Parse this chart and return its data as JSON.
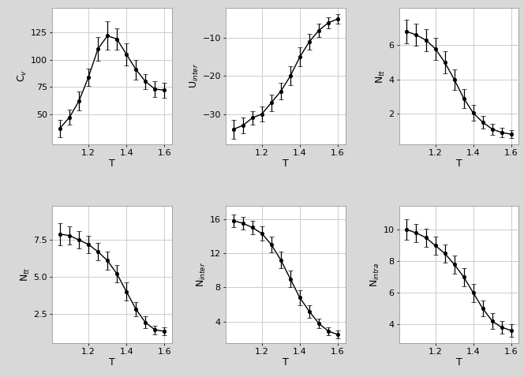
{
  "T": [
    1.05,
    1.1,
    1.15,
    1.2,
    1.25,
    1.3,
    1.35,
    1.4,
    1.45,
    1.5,
    1.55,
    1.6
  ],
  "Cv_y": [
    37,
    47,
    62,
    84,
    110,
    122,
    119,
    105,
    91,
    80,
    73,
    72
  ],
  "Cv_yerr": [
    8,
    7,
    9,
    8,
    11,
    13,
    10,
    10,
    9,
    7,
    7,
    7
  ],
  "Cv_ylabel": "C$_v$",
  "Cv_ylim": [
    22,
    148
  ],
  "Cv_yticks": [
    50,
    75,
    100,
    125
  ],
  "Uinter_y": [
    -34,
    -33,
    -31,
    -30,
    -27,
    -24,
    -20,
    -15,
    -11,
    -8,
    -6,
    -5
  ],
  "Uinter_yerr": [
    2.5,
    2.0,
    1.8,
    2.0,
    2.2,
    2.2,
    2.5,
    2.5,
    2.0,
    1.8,
    1.5,
    1.2
  ],
  "Uinter_ylabel": "U$_{inter}$",
  "Uinter_ylim": [
    -38,
    -2
  ],
  "Uinter_yticks": [
    -30,
    -20,
    -10
  ],
  "Ntt_y": [
    6.8,
    6.6,
    6.3,
    5.8,
    5.0,
    4.0,
    2.9,
    2.05,
    1.5,
    1.1,
    0.9,
    0.8
  ],
  "Ntt_yerr": [
    0.7,
    0.65,
    0.65,
    0.65,
    0.65,
    0.6,
    0.55,
    0.45,
    0.38,
    0.32,
    0.28,
    0.22
  ],
  "Ntt_ylabel": "N$_{tt}$",
  "Ntt_ylim": [
    0.2,
    8.2
  ],
  "Ntt_yticks": [
    2,
    4,
    6
  ],
  "Ntt2_y": [
    7.9,
    7.8,
    7.5,
    7.2,
    6.7,
    6.1,
    5.2,
    4.0,
    2.8,
    1.9,
    1.4,
    1.3
  ],
  "Ntt2_yerr": [
    0.75,
    0.6,
    0.6,
    0.6,
    0.6,
    0.6,
    0.6,
    0.6,
    0.5,
    0.4,
    0.3,
    0.28
  ],
  "Ntt2_ylabel": "N$_{tt}$",
  "Ntt2_ylim": [
    0.5,
    9.8
  ],
  "Ntt2_yticks": [
    2.5,
    5.0,
    7.5
  ],
  "Ninter_y": [
    15.8,
    15.5,
    15.0,
    14.3,
    13.0,
    11.2,
    9.0,
    6.8,
    5.2,
    3.8,
    2.9,
    2.5
  ],
  "Ninter_yerr": [
    0.75,
    0.7,
    0.75,
    0.85,
    0.95,
    0.95,
    0.95,
    0.85,
    0.75,
    0.55,
    0.48,
    0.45
  ],
  "Ninter_ylabel": "N$_{inter}$",
  "Ninter_ylim": [
    1.5,
    17.5
  ],
  "Ninter_yticks": [
    4,
    8,
    12,
    16
  ],
  "Nintra_y": [
    10.0,
    9.8,
    9.5,
    9.0,
    8.5,
    7.8,
    7.0,
    6.0,
    5.0,
    4.2,
    3.8,
    3.6
  ],
  "Nintra_yerr": [
    0.65,
    0.58,
    0.58,
    0.58,
    0.58,
    0.58,
    0.58,
    0.58,
    0.48,
    0.48,
    0.38,
    0.38
  ],
  "Nintra_ylabel": "N$_{intra}$",
  "Nintra_ylim": [
    2.8,
    11.5
  ],
  "Nintra_yticks": [
    4,
    6,
    8,
    10
  ],
  "xlabel": "T",
  "xlim": [
    1.01,
    1.64
  ],
  "xticks": [
    1.2,
    1.4,
    1.6
  ],
  "fig_bg_color": "#d8d8d8",
  "plot_bg": "#ffffff",
  "grid_color": "#cccccc",
  "line_color": "black",
  "marker": "o",
  "markersize": 3.2,
  "linewidth": 1.0,
  "capsize": 2.5,
  "elinewidth": 0.9,
  "fontsize_label": 9,
  "fontsize_tick": 8
}
